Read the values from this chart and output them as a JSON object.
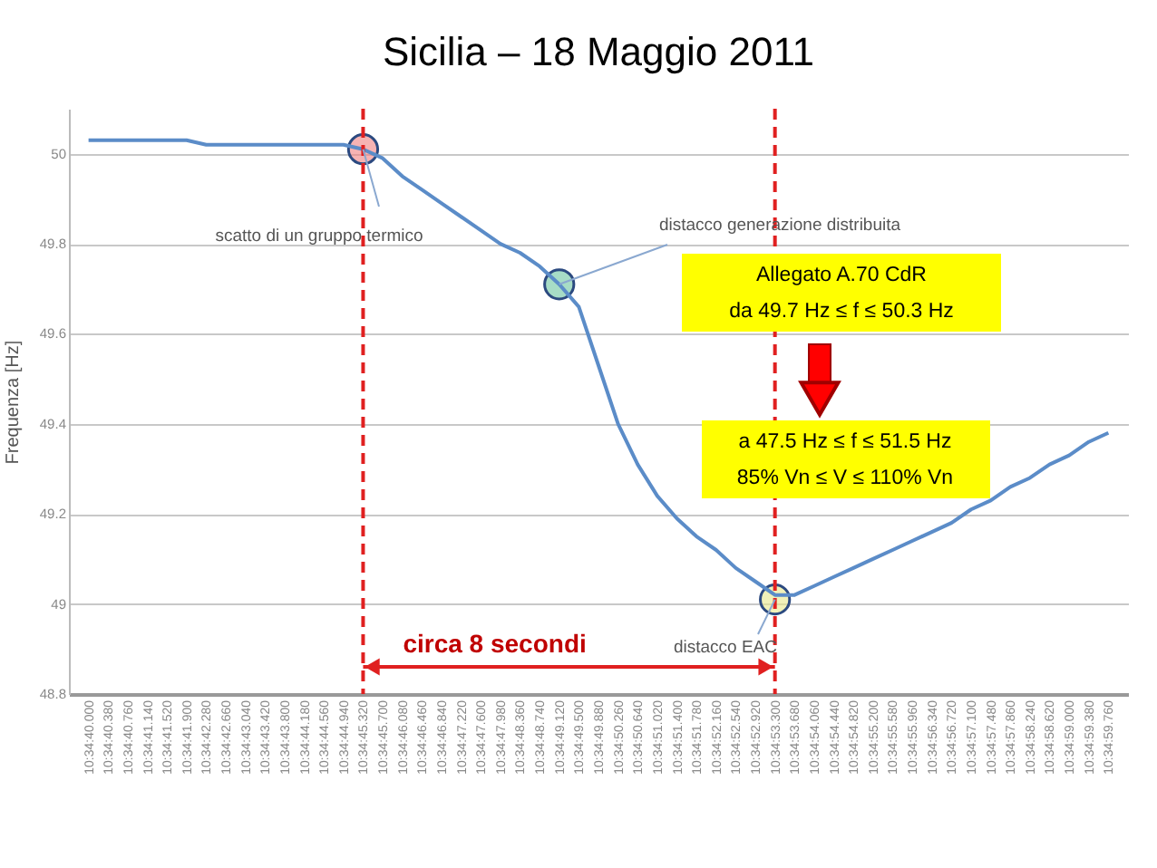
{
  "chart_data": {
    "type": "line",
    "title": "Sicilia – 18 Maggio 2011",
    "ylabel": "Frequenza [Hz]",
    "categories": [
      "10:34:40.000",
      "10:34:40.380",
      "10:34:40.760",
      "10:34:41.140",
      "10:34:41.520",
      "10:34:41.900",
      "10:34:42.280",
      "10:34:42.660",
      "10:34:43.040",
      "10:34:43.420",
      "10:34:43.800",
      "10:34:44.180",
      "10:34:44.560",
      "10:34:44.940",
      "10:34:45.320",
      "10:34:45.700",
      "10:34:46.080",
      "10:34:46.460",
      "10:34:46.840",
      "10:34:47.220",
      "10:34:47.600",
      "10:34:47.980",
      "10:34:48.360",
      "10:34:48.740",
      "10:34:49.120",
      "10:34:49.500",
      "10:34:49.880",
      "10:34:50.260",
      "10:34:50.640",
      "10:34:51.020",
      "10:34:51.400",
      "10:34:51.780",
      "10:34:52.160",
      "10:34:52.540",
      "10:34:52.920",
      "10:34:53.300",
      "10:34:53.680",
      "10:34:54.060",
      "10:34:54.440",
      "10:34:54.820",
      "10:34:55.200",
      "10:34:55.580",
      "10:34:55.960",
      "10:34:56.340",
      "10:34:56.720",
      "10:34:57.100",
      "10:34:57.480",
      "10:34:57.860",
      "10:34:58.240",
      "10:34:58.620",
      "10:34:59.000",
      "10:34:59.380",
      "10:34:59.760"
    ],
    "values": [
      50.03,
      50.03,
      50.03,
      50.03,
      50.03,
      50.03,
      50.02,
      50.02,
      50.02,
      50.02,
      50.02,
      50.02,
      50.02,
      50.02,
      50.01,
      49.99,
      49.95,
      49.92,
      49.89,
      49.86,
      49.83,
      49.8,
      49.78,
      49.75,
      49.71,
      49.66,
      49.53,
      49.4,
      49.31,
      49.24,
      49.19,
      49.15,
      49.12,
      49.08,
      49.05,
      49.02,
      49.02,
      49.04,
      49.06,
      49.08,
      49.1,
      49.12,
      49.14,
      49.16,
      49.18,
      49.21,
      49.23,
      49.26,
      49.28,
      49.31,
      49.33,
      49.36,
      49.38
    ],
    "color": "#5b8cc8",
    "ylim": [
      48.8,
      50.1
    ],
    "yticks": [
      48.8,
      49,
      49.2,
      49.4,
      49.6,
      49.8,
      50
    ],
    "grid": "y",
    "marker": "none",
    "line_style": "solid",
    "ref_lines": [
      {
        "axis": "x",
        "value": "10:34:45.320",
        "color": "#e02020",
        "line_style": "dashed"
      },
      {
        "axis": "x",
        "value": "10:34:53.300",
        "color": "#e02020",
        "line_style": "dashed"
      }
    ],
    "annotations": [
      {
        "text": "scatto di un gruppo termico",
        "x": "10:34:45.320",
        "y": 50.01
      },
      {
        "text": "distacco generazione distribuita",
        "x": "10:34:49.120",
        "y": 49.71
      },
      {
        "text": "distacco EAC",
        "x": "10:34:53.300",
        "y": 49.01
      },
      "Allegato A.70 CdR",
      "da 49.7 Hz ≤ f ≤ 50.3 Hz",
      "a 47.5 Hz ≤ f ≤ 51.5 Hz",
      "85% Vn ≤ V ≤ 110% Vn",
      "circa 8 secondi"
    ]
  }
}
